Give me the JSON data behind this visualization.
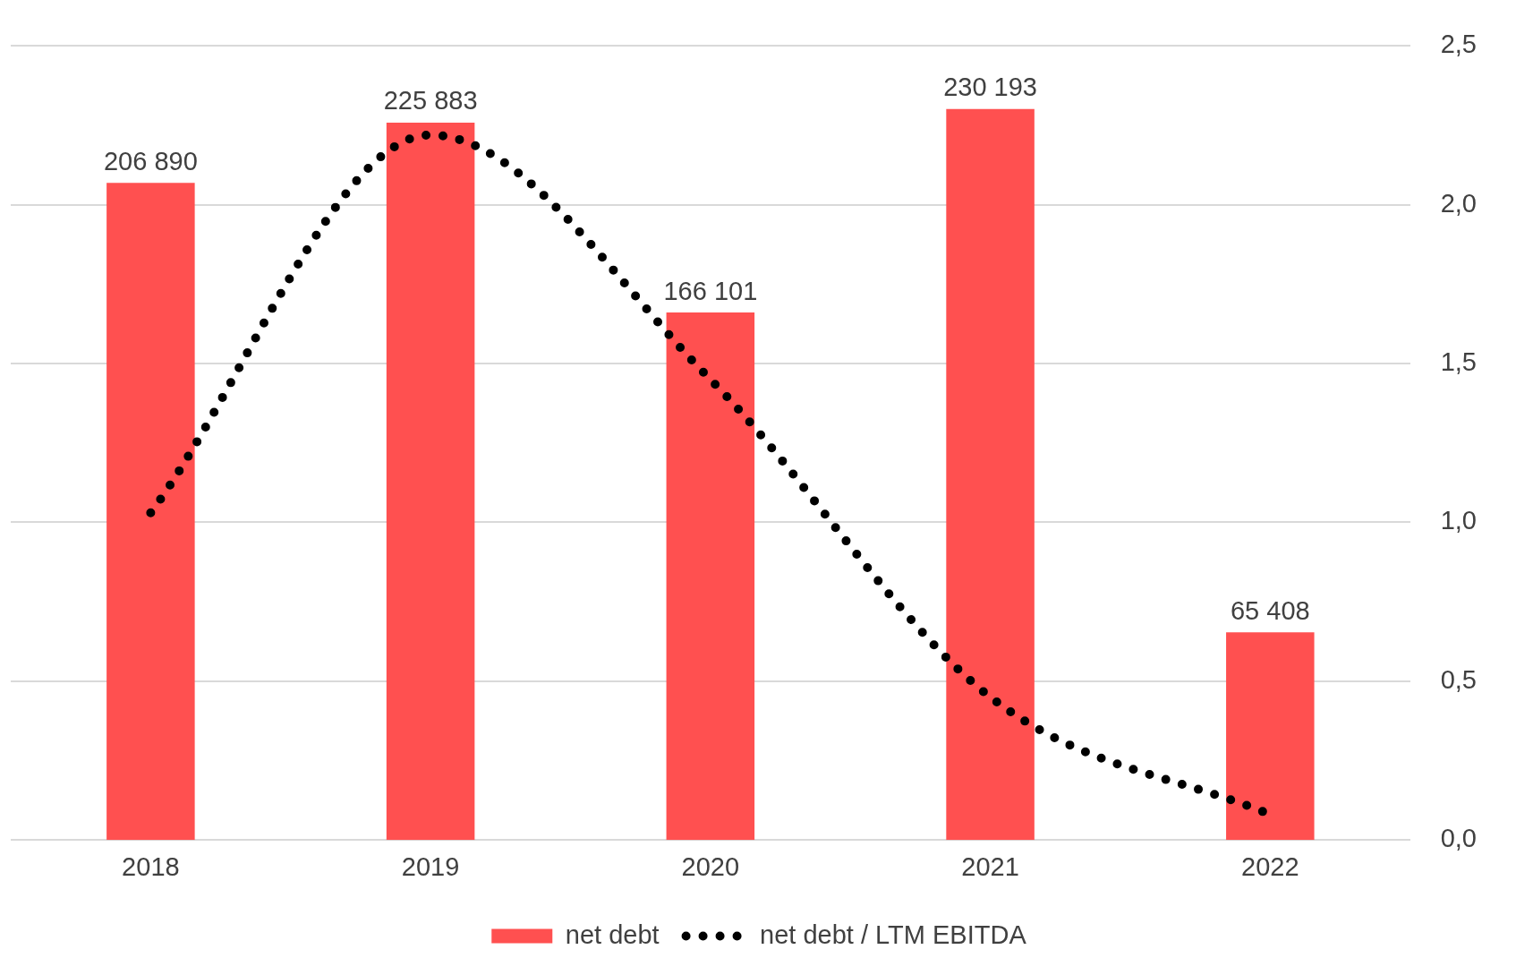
{
  "chart_data": {
    "type": "bar",
    "categories": [
      "2018",
      "2019",
      "2020",
      "2021",
      "2022"
    ],
    "series": [
      {
        "name": "net debt",
        "color": "#ff5050",
        "values": [
          206890,
          225883,
          166101,
          230193,
          65408
        ],
        "value_labels": [
          "206 890",
          "225 883",
          "166 101",
          "230 193",
          "65 408"
        ]
      },
      {
        "name": "net debt / LTM EBITDA",
        "type": "line",
        "axis": "y2",
        "color": "#000000",
        "values": [
          1.03,
          2.22,
          1.45,
          0.45,
          0.08
        ],
        "line_style": "dotted",
        "marker": "none"
      }
    ],
    "ylim": [
      0,
      250000
    ],
    "y2lim": [
      0,
      2.5
    ],
    "y2ticks": [
      {
        "value": 0,
        "label": "0,0"
      },
      {
        "value": 0.5,
        "label": "0,5"
      },
      {
        "value": 1,
        "label": "1,0"
      },
      {
        "value": 1.5,
        "label": "1,5"
      },
      {
        "value": 2,
        "label": "2,0"
      },
      {
        "value": 2.5,
        "label": "2,5"
      }
    ],
    "grid": "y",
    "legend": "bottom"
  }
}
